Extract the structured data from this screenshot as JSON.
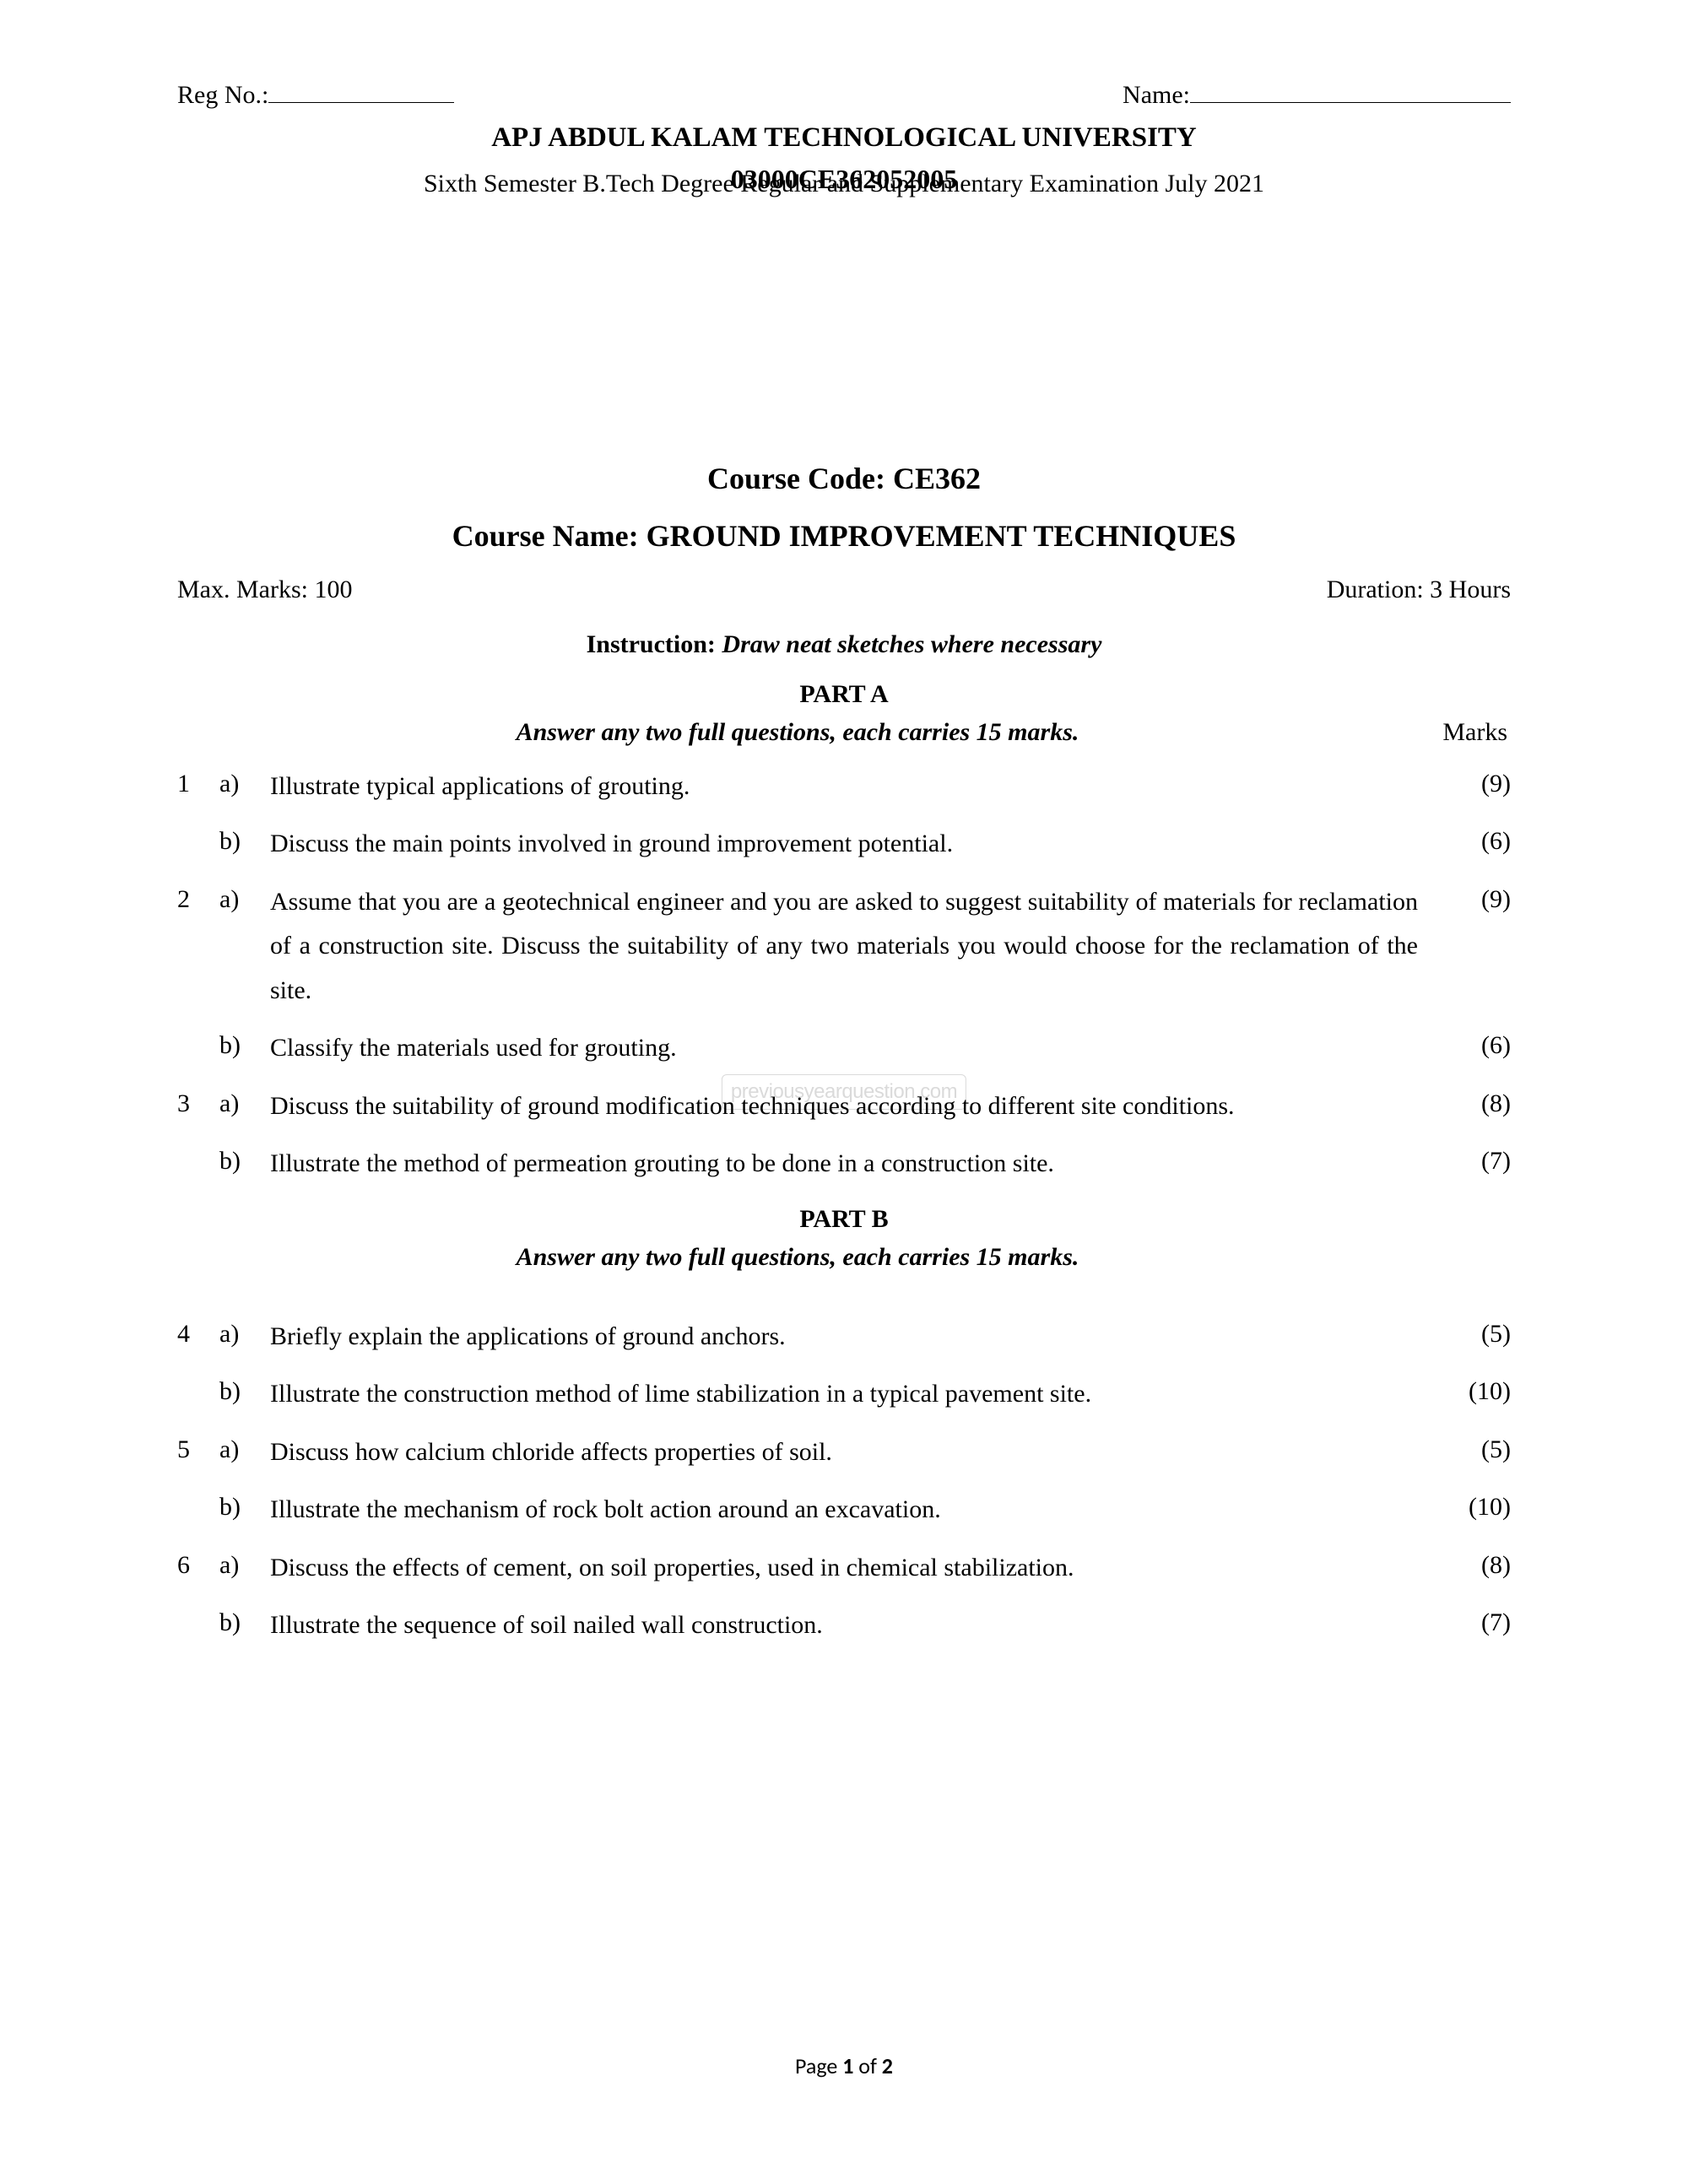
{
  "header": {
    "reg_label": "Reg No.:",
    "name_label": "Name:",
    "paper_code_overlay": "03000CE362052005",
    "university": "APJ ABDUL KALAM TECHNOLOGICAL UNIVERSITY",
    "exam_subtitle": "Sixth Semester B.Tech Degree Regular and Supplementary Examination July 2021"
  },
  "course": {
    "code_label": "Course Code: CE362",
    "name_label": "Course Name: GROUND IMPROVEMENT TECHNIQUES"
  },
  "meta": {
    "max_marks": "Max. Marks: 100",
    "duration": "Duration: 3 Hours",
    "instruction_label": "Instruction: ",
    "instruction_text": "Draw neat sketches where necessary"
  },
  "parts": {
    "a": {
      "title": "PART A",
      "instruction": "Answer any two full questions, each carries 15 marks.",
      "marks_header": "Marks"
    },
    "b": {
      "title": "PART B",
      "instruction": "Answer any two full questions, each carries 15 marks."
    }
  },
  "questions": {
    "q1a": {
      "num": "1",
      "sub": "a)",
      "text": "Illustrate typical applications of grouting.",
      "marks": "(9)"
    },
    "q1b": {
      "num": "",
      "sub": "b)",
      "text": "Discuss the main points involved in ground improvement potential.",
      "marks": "(6)"
    },
    "q2a": {
      "num": "2",
      "sub": "a)",
      "text": "Assume that you are a geotechnical engineer and you are asked to suggest suitability of materials for reclamation of a construction site. Discuss the suitability of any two materials you would choose for the reclamation of the site.",
      "marks": "(9)"
    },
    "q2b": {
      "num": "",
      "sub": "b)",
      "text": "Classify the materials used for grouting.",
      "marks": "(6)"
    },
    "q3a": {
      "num": "3",
      "sub": "a)",
      "text": "Discuss the suitability of ground modification techniques according to different site conditions.",
      "marks": "(8)"
    },
    "q3b": {
      "num": "",
      "sub": "b)",
      "text": "Illustrate the method of permeation grouting to be done in a construction site.",
      "marks": "(7)"
    },
    "q4a": {
      "num": "4",
      "sub": "a)",
      "text": "Briefly explain the applications of ground anchors.",
      "marks": "(5)"
    },
    "q4b": {
      "num": "",
      "sub": "b)",
      "text": "Illustrate the construction method of lime stabilization in a typical pavement site.",
      "marks": "(10)"
    },
    "q5a": {
      "num": "5",
      "sub": "a)",
      "text": "Discuss how calcium chloride affects properties of soil.",
      "marks": "(5)"
    },
    "q5b": {
      "num": "",
      "sub": "b)",
      "text": "Illustrate the mechanism of rock bolt action around an excavation.",
      "marks": "(10)"
    },
    "q6a": {
      "num": "6",
      "sub": "a)",
      "text": "Discuss the effects of cement, on soil properties, used in chemical stabilization.",
      "marks": "(8)"
    },
    "q6b": {
      "num": "",
      "sub": "b)",
      "text": "Illustrate the sequence of soil nailed wall construction.",
      "marks": "(7)"
    }
  },
  "footer": {
    "page_label": "Page ",
    "page_current": "1",
    "page_of": " of ",
    "page_total": "2"
  },
  "watermark": {
    "center": "previousyearquestion.com"
  }
}
